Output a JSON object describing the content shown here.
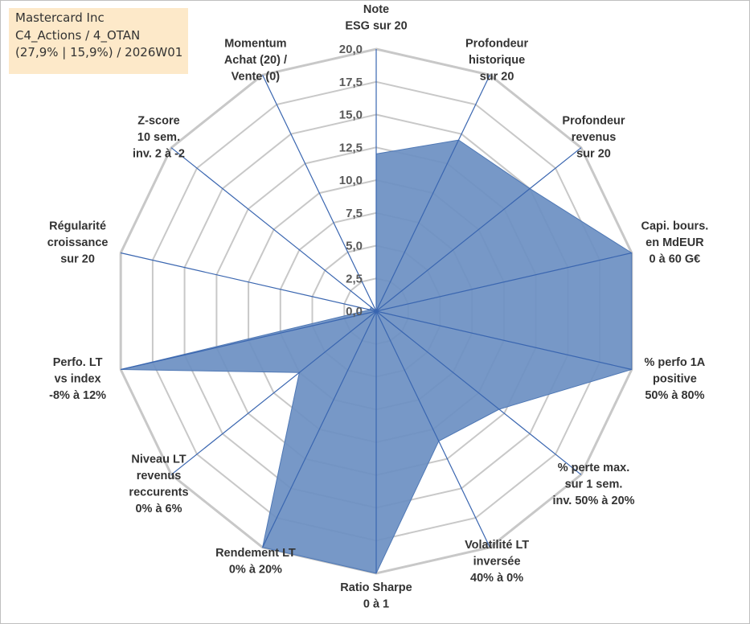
{
  "title_box": {
    "line1": "Mastercard Inc",
    "line2": "C4_Actions / 4_OTAN",
    "line3": "(27,9% | 15,9%) / 2026W01"
  },
  "chart_data": {
    "type": "radar",
    "title": "",
    "radial_range": [
      0,
      20
    ],
    "radial_ticks": [
      "0,0",
      "2,5",
      "5,0",
      "7,5",
      "10,0",
      "12,5",
      "15,0",
      "17,5",
      "20,0"
    ],
    "grid": true,
    "colors": {
      "fill": "#6b8fc2",
      "stroke": "#4f78b5",
      "spoke": "#3a66b0",
      "grid": "#c8c8c8"
    },
    "axes": [
      {
        "label": [
          "Note",
          "ESG sur 20"
        ],
        "value": 12.0
      },
      {
        "label": [
          "Profondeur",
          "historique",
          "sur 20"
        ],
        "value": 14.5
      },
      {
        "label": [
          "Profondeur",
          "revenus",
          "sur 20"
        ],
        "value": 15.0
      },
      {
        "label": [
          "Capi. bours.",
          "en MdEUR",
          "0 à 60 G€"
        ],
        "value": 20.0
      },
      {
        "label": [
          "% perfo 1A",
          "positive",
          "50% à 80%"
        ],
        "value": 20.0
      },
      {
        "label": [
          "% perte max.",
          "sur 1 sem.",
          "inv. 50% à 20%"
        ],
        "value": 12.0
      },
      {
        "label": [
          "Volatilité LT",
          "inversée",
          "40% à 0%"
        ],
        "value": 11.0
      },
      {
        "label": [
          "Ratio Sharpe",
          "0 à 1"
        ],
        "value": 20.0
      },
      {
        "label": [
          "Rendement LT",
          "0% à 20%"
        ],
        "value": 20.0
      },
      {
        "label": [
          "Niveau LT",
          "revenus",
          "reccurents",
          "0% à 6%"
        ],
        "value": 7.5
      },
      {
        "label": [
          "Perfo. LT",
          "vs index",
          "-8% à 12%"
        ],
        "value": 20.0
      },
      {
        "label": [
          "Régularité",
          "croissance",
          "sur 20"
        ],
        "value": 0.5
      },
      {
        "label": [
          "Z-score",
          "10 sem.",
          "inv. 2 à -2"
        ],
        "value": 0.5
      },
      {
        "label": [
          "Momentum",
          "Achat (20) /",
          "Vente (0)"
        ],
        "value": 0.0
      }
    ]
  }
}
